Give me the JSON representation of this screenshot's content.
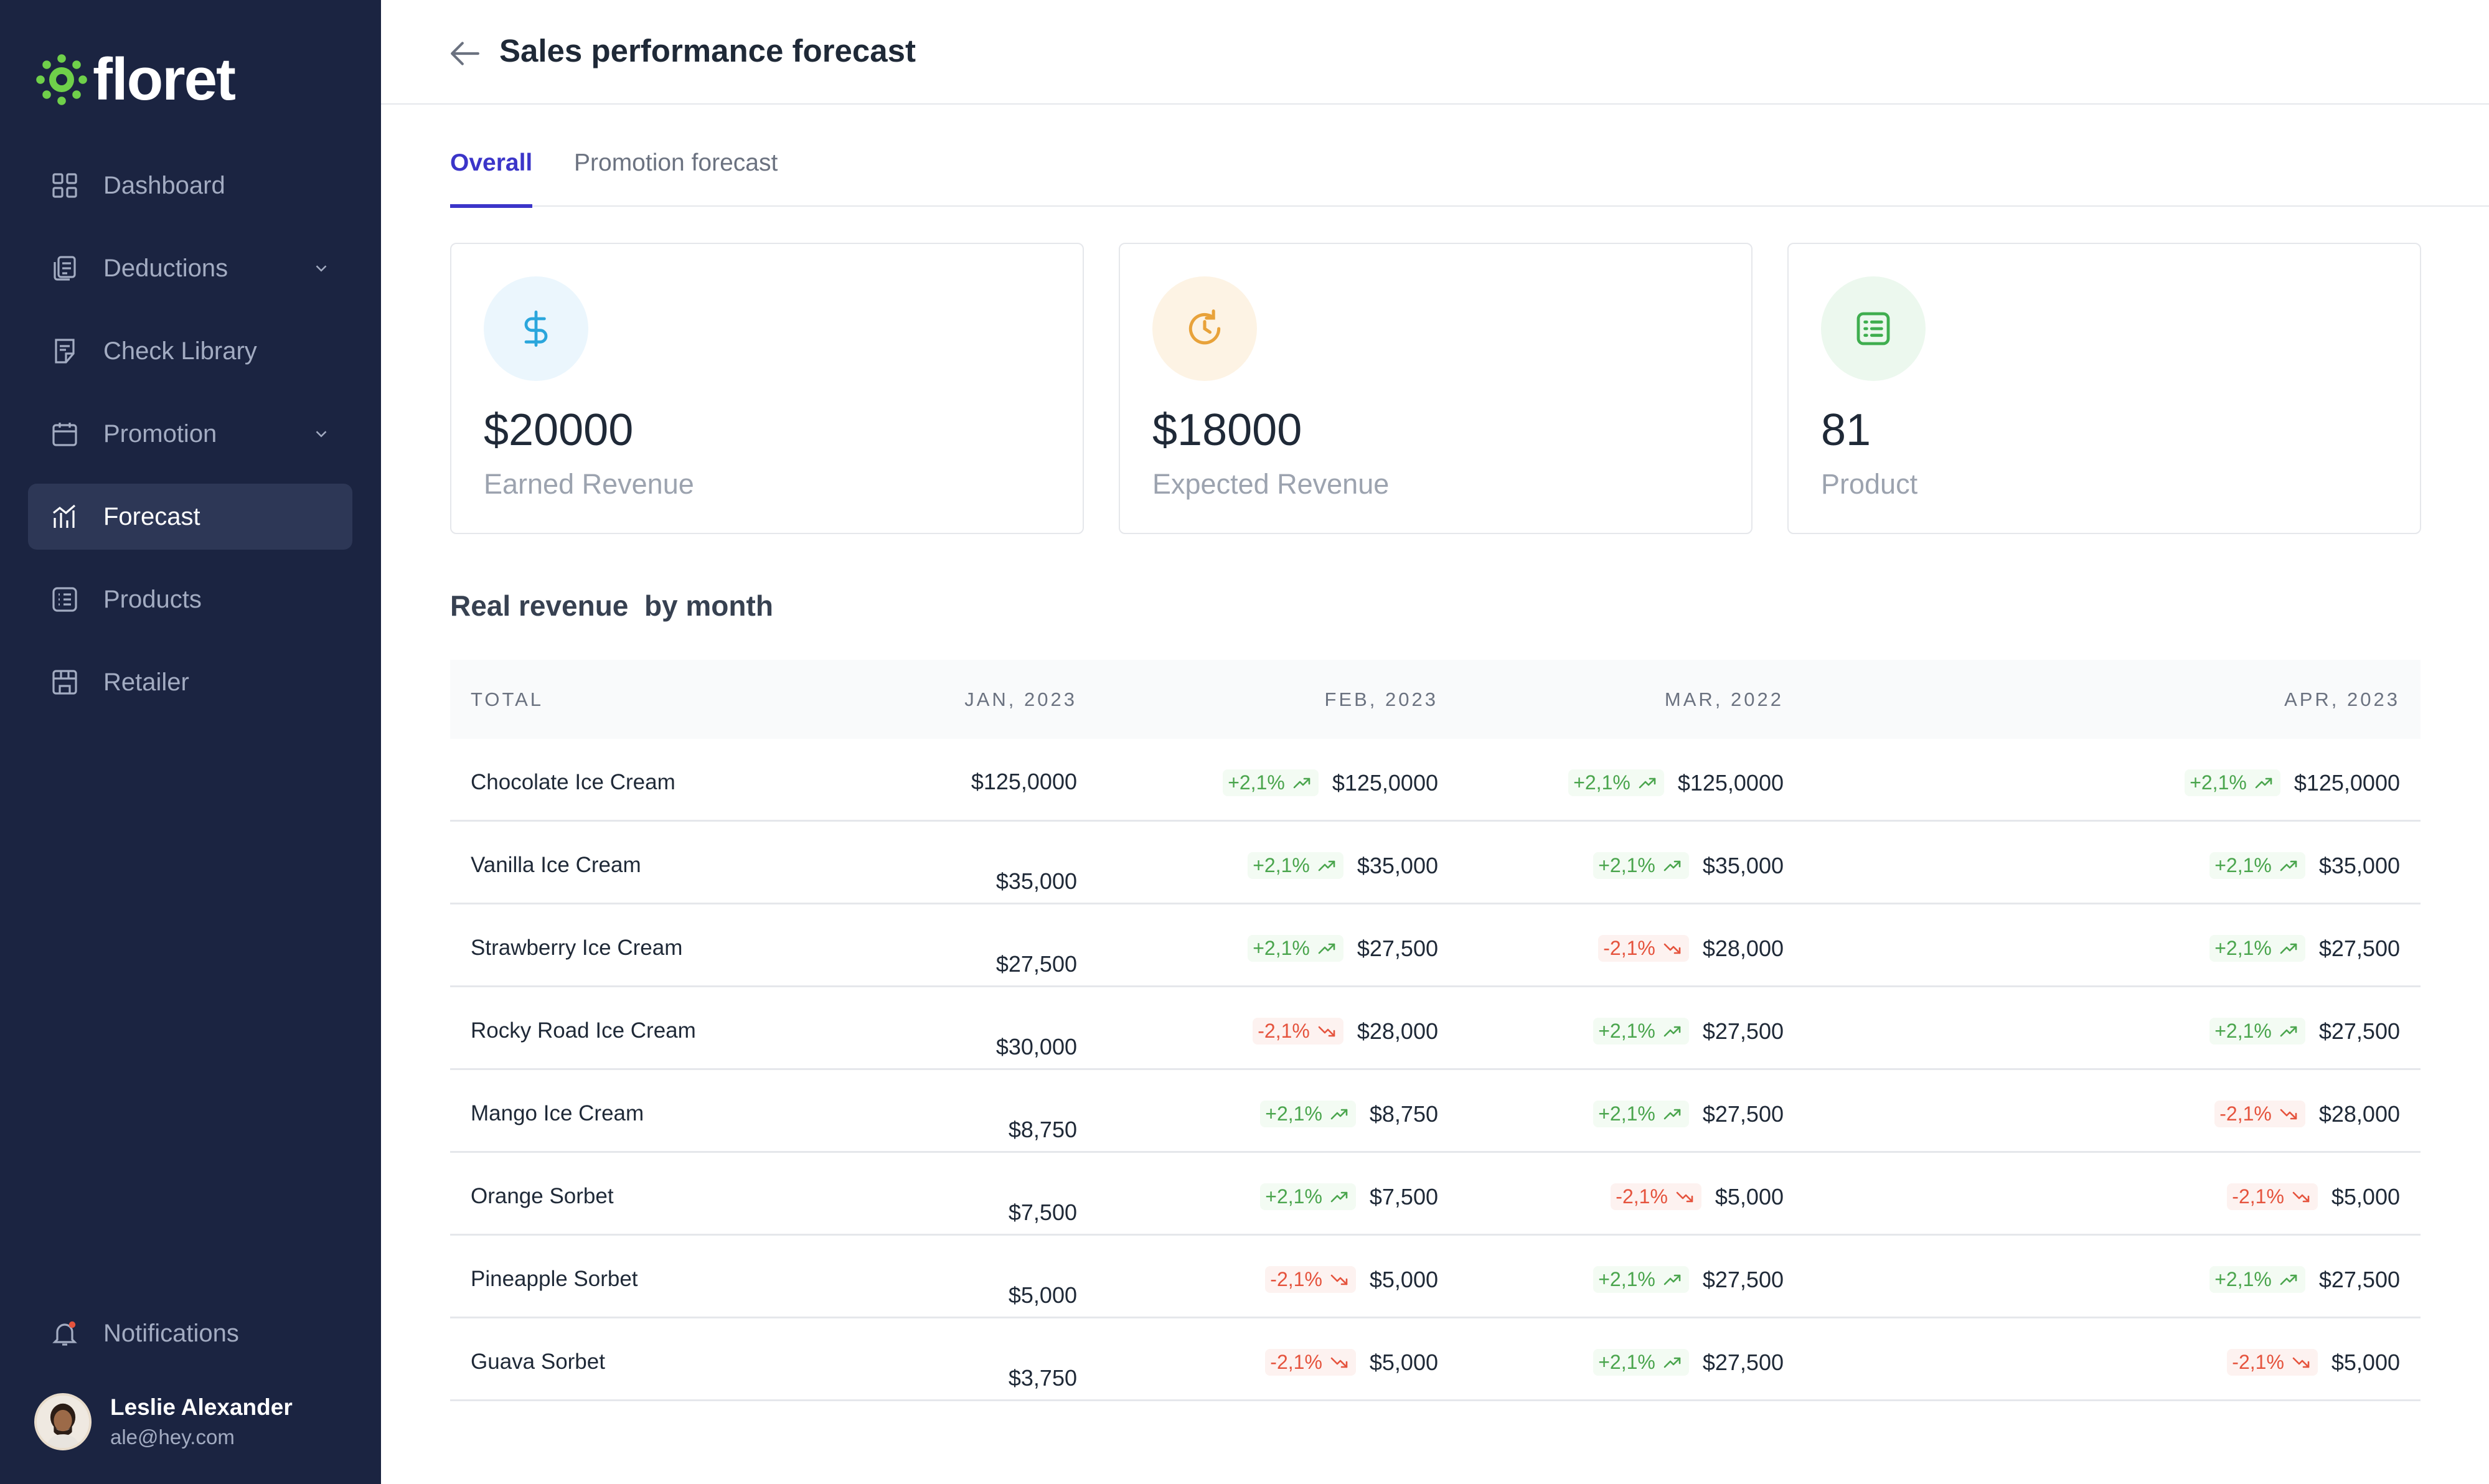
{
  "brand": {
    "name": "floret"
  },
  "nav": {
    "items": [
      {
        "label": "Dashboard",
        "icon": "grid-icon"
      },
      {
        "label": "Deductions",
        "icon": "document-copy-icon",
        "expandable": true
      },
      {
        "label": "Check Library",
        "icon": "check-document-icon"
      },
      {
        "label": "Promotion",
        "icon": "calendar-icon",
        "expandable": true
      },
      {
        "label": "Forecast",
        "icon": "chart-icon",
        "active": true
      },
      {
        "label": "Products",
        "icon": "list-icon"
      },
      {
        "label": "Retailer",
        "icon": "store-icon"
      }
    ],
    "notifications_label": "Notifications"
  },
  "user": {
    "name": "Leslie Alexander",
    "email": "ale@hey.com"
  },
  "header": {
    "title": "Sales performance forecast"
  },
  "tabs": [
    {
      "label": "Overall",
      "active": true
    },
    {
      "label": "Promotion forecast",
      "active": false
    }
  ],
  "cards": [
    {
      "value": "$20000",
      "label": "Earned Revenue",
      "icon": "dollar-icon",
      "color": "#2aa6dc"
    },
    {
      "value": "$18000",
      "label": "Expected Revenue",
      "icon": "clock-refresh-icon",
      "color": "#e8a23a"
    },
    {
      "value": "81",
      "label": "Product",
      "icon": "list-icon",
      "color": "#3fae4f"
    }
  ],
  "table": {
    "title": "Real revenue  by month",
    "headers": [
      "TOTAL",
      "JAN, 2023",
      "FEB, 2023",
      "MAR, 2022",
      "APR, 2023"
    ],
    "rows": [
      {
        "name": "Chocolate Ice Cream",
        "jan": "$125,0000",
        "cells": [
          {
            "delta": "+2,1%",
            "dir": "up",
            "value": "$125,0000"
          },
          {
            "delta": "+2,1%",
            "dir": "up",
            "value": "$125,0000"
          },
          {
            "delta": "+2,1%",
            "dir": "up",
            "value": "$125,0000"
          }
        ]
      },
      {
        "name": "Vanilla Ice Cream",
        "jan": "$35,000",
        "cells": [
          {
            "delta": "+2,1%",
            "dir": "up",
            "value": "$35,000"
          },
          {
            "delta": "+2,1%",
            "dir": "up",
            "value": "$35,000"
          },
          {
            "delta": "+2,1%",
            "dir": "up",
            "value": "$35,000"
          }
        ]
      },
      {
        "name": "Strawberry Ice Cream",
        "jan": "$27,500",
        "cells": [
          {
            "delta": "+2,1%",
            "dir": "up",
            "value": "$27,500"
          },
          {
            "delta": "-2,1%",
            "dir": "down",
            "value": "$28,000"
          },
          {
            "delta": "+2,1%",
            "dir": "up",
            "value": "$27,500"
          }
        ]
      },
      {
        "name": "Rocky Road Ice Cream",
        "jan": "$30,000",
        "cells": [
          {
            "delta": "-2,1%",
            "dir": "down",
            "value": "$28,000"
          },
          {
            "delta": "+2,1%",
            "dir": "up",
            "value": "$27,500"
          },
          {
            "delta": "+2,1%",
            "dir": "up",
            "value": "$27,500"
          }
        ]
      },
      {
        "name": "Mango Ice Cream",
        "jan": "$8,750",
        "cells": [
          {
            "delta": "+2,1%",
            "dir": "up",
            "value": "$8,750"
          },
          {
            "delta": "+2,1%",
            "dir": "up",
            "value": "$27,500"
          },
          {
            "delta": "-2,1%",
            "dir": "down",
            "value": "$28,000"
          }
        ]
      },
      {
        "name": "Orange Sorbet",
        "jan": "$7,500",
        "cells": [
          {
            "delta": "+2,1%",
            "dir": "up",
            "value": "$7,500"
          },
          {
            "delta": "-2,1%",
            "dir": "down",
            "value": "$5,000"
          },
          {
            "delta": "-2,1%",
            "dir": "down",
            "value": "$5,000"
          }
        ]
      },
      {
        "name": "Pineapple Sorbet",
        "jan": "$5,000",
        "cells": [
          {
            "delta": "-2,1%",
            "dir": "down",
            "value": "$5,000"
          },
          {
            "delta": "+2,1%",
            "dir": "up",
            "value": "$27,500"
          },
          {
            "delta": "+2,1%",
            "dir": "up",
            "value": "$27,500"
          }
        ]
      },
      {
        "name": "Guava Sorbet",
        "jan": "$3,750",
        "cells": [
          {
            "delta": "-2,1%",
            "dir": "down",
            "value": "$5,000"
          },
          {
            "delta": "+2,1%",
            "dir": "up",
            "value": "$27,500"
          },
          {
            "delta": "-2,1%",
            "dir": "down",
            "value": "$5,000"
          }
        ]
      }
    ]
  }
}
